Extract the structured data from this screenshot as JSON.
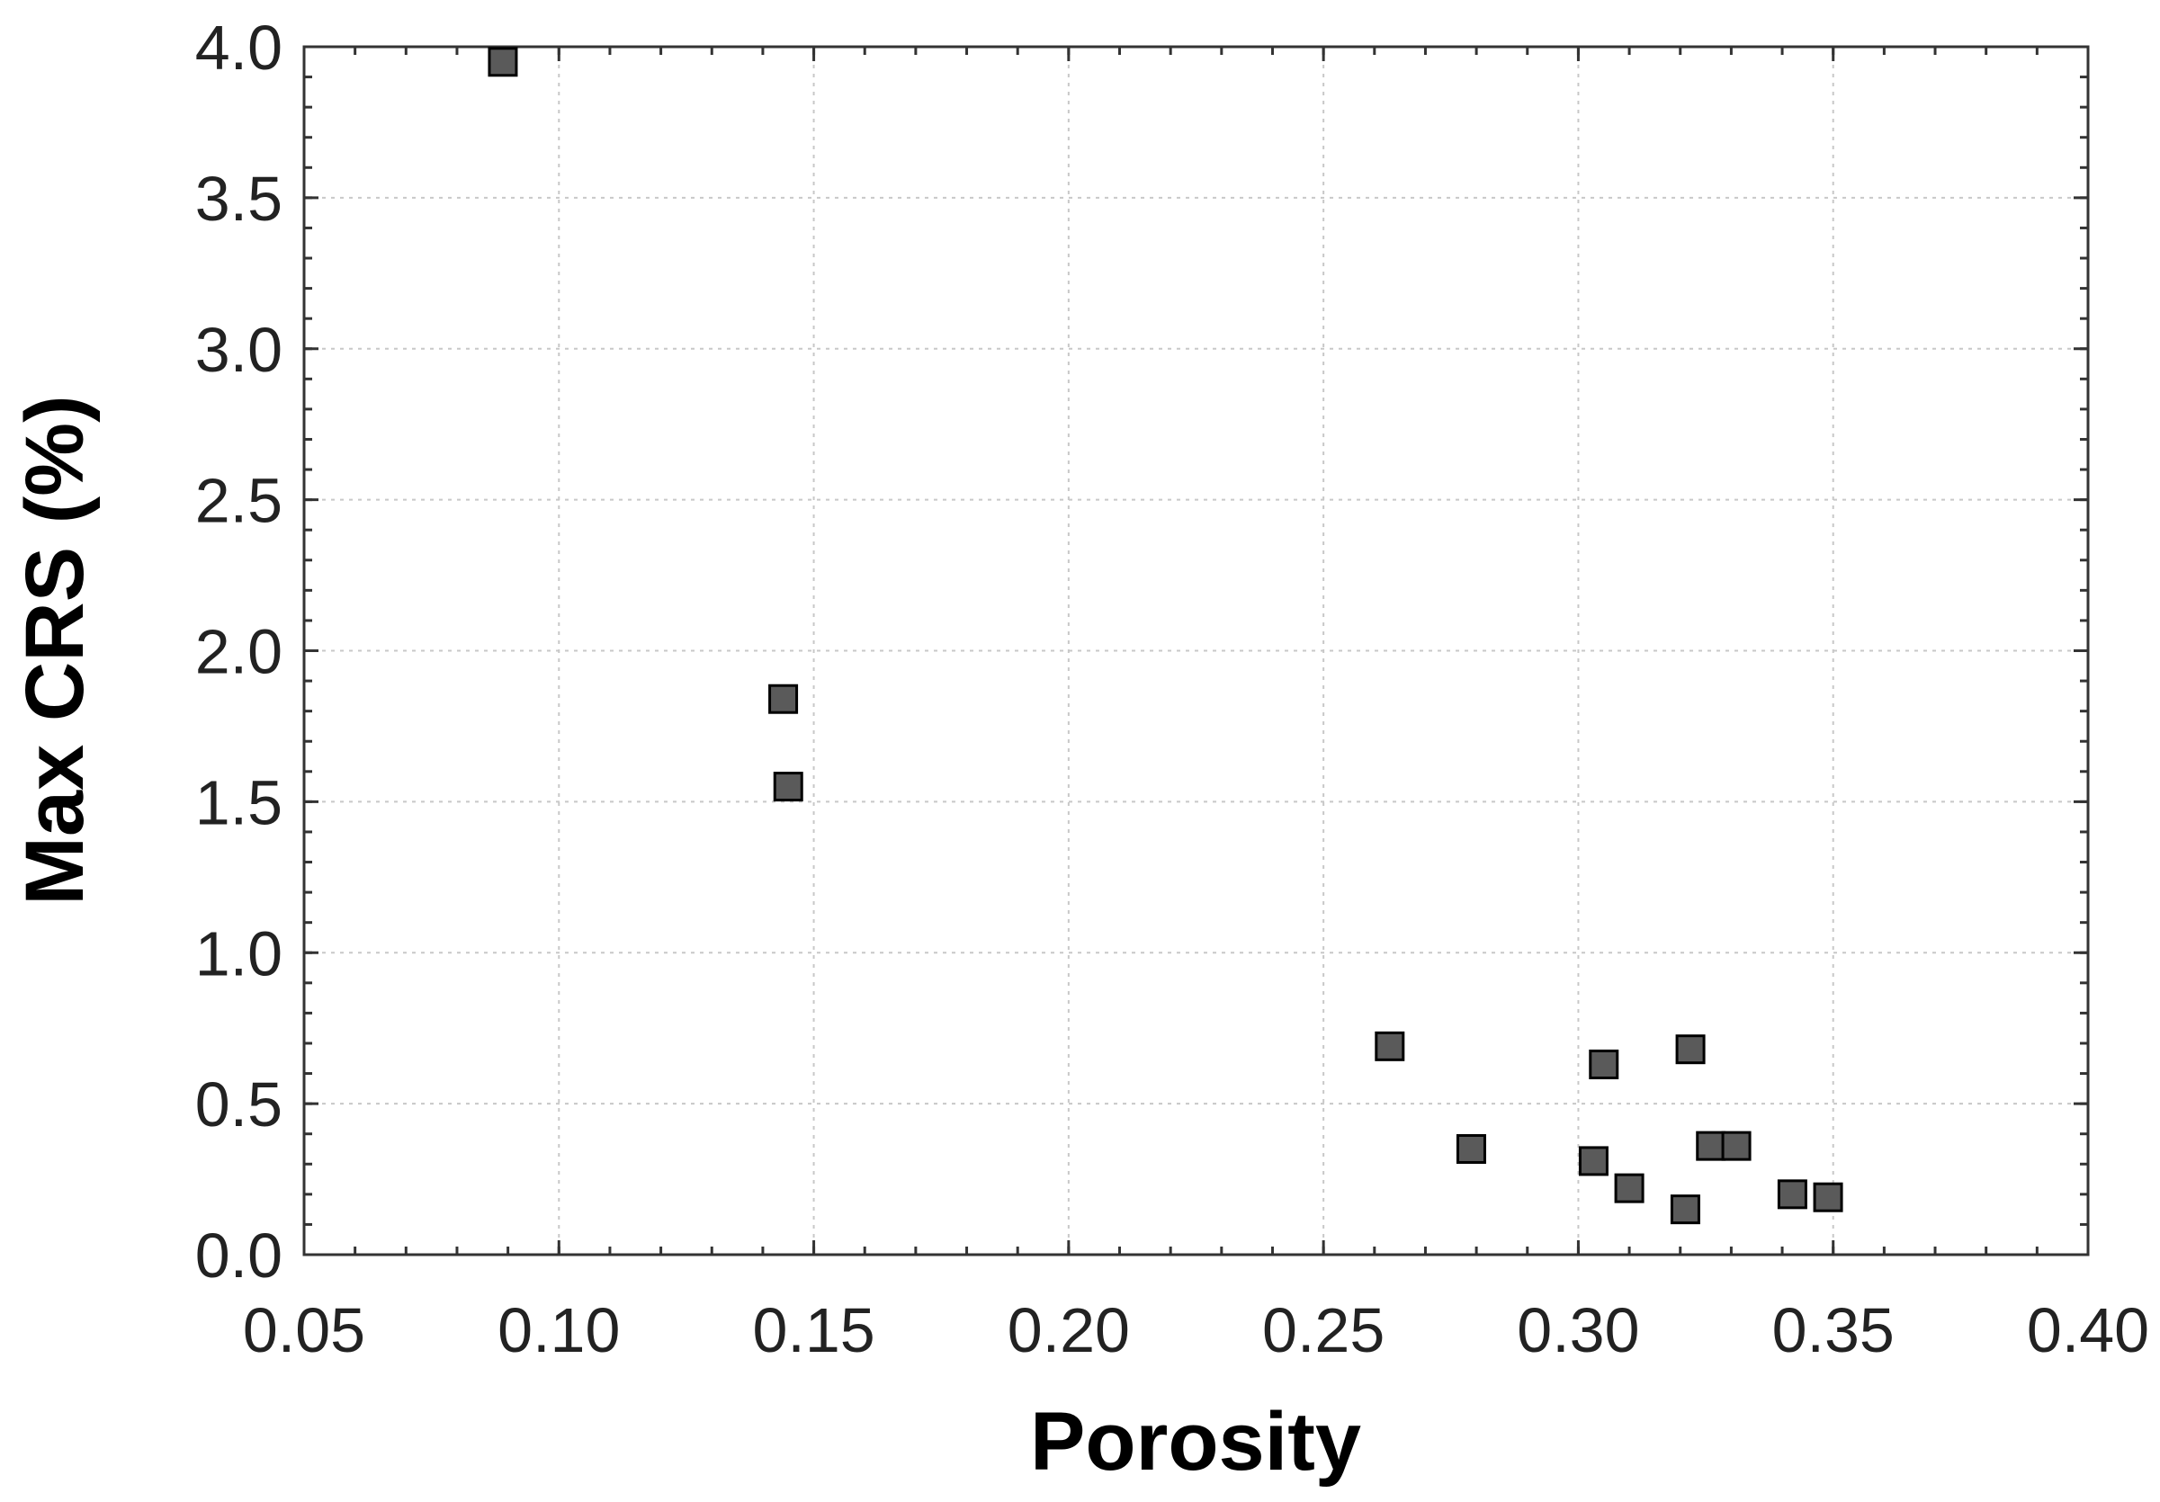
{
  "chart_data": {
    "type": "scatter",
    "xlabel": "Porosity",
    "ylabel": "Max CRS (%)",
    "xlim": [
      0.05,
      0.4
    ],
    "ylim": [
      0.0,
      4.0
    ],
    "xticks": [
      "0.05",
      "0.10",
      "0.15",
      "0.20",
      "0.25",
      "0.30",
      "0.35",
      "0.40"
    ],
    "yticks": [
      "0.0",
      "0.5",
      "1.0",
      "1.5",
      "2.0",
      "2.5",
      "3.0",
      "3.5",
      "4.0"
    ],
    "grid": true,
    "marker": "square",
    "marker_color": "#5a5a5a",
    "series": [
      {
        "points": [
          {
            "x": 0.089,
            "y": 3.95
          },
          {
            "x": 0.144,
            "y": 1.84
          },
          {
            "x": 0.145,
            "y": 1.55
          },
          {
            "x": 0.263,
            "y": 0.69
          },
          {
            "x": 0.279,
            "y": 0.35
          },
          {
            "x": 0.303,
            "y": 0.31
          },
          {
            "x": 0.305,
            "y": 0.63
          },
          {
            "x": 0.31,
            "y": 0.22
          },
          {
            "x": 0.321,
            "y": 0.15
          },
          {
            "x": 0.322,
            "y": 0.68
          },
          {
            "x": 0.326,
            "y": 0.36
          },
          {
            "x": 0.331,
            "y": 0.36
          },
          {
            "x": 0.342,
            "y": 0.2
          },
          {
            "x": 0.349,
            "y": 0.19
          }
        ]
      }
    ]
  }
}
